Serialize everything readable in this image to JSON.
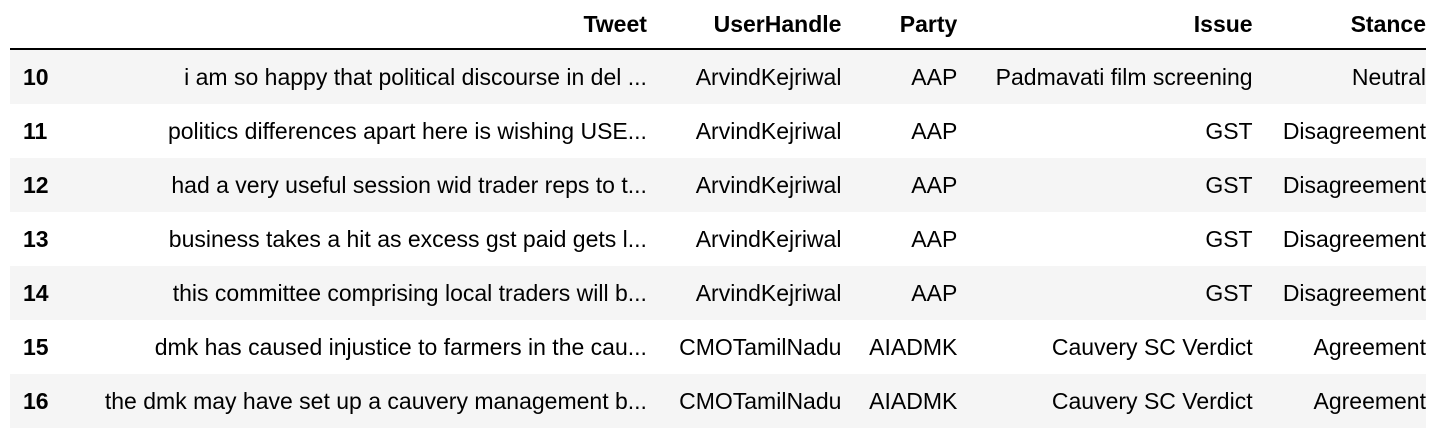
{
  "table": {
    "columns": [
      "",
      "Tweet",
      "UserHandle",
      "Party",
      "Issue",
      "Stance"
    ],
    "rows": [
      {
        "index": "10",
        "tweet": "i am so happy that political discourse in del ...",
        "user": "ArvindKejriwal",
        "party": "AAP",
        "issue": "Padmavati film screening",
        "stance": "Neutral"
      },
      {
        "index": "11",
        "tweet": "politics differences apart here is wishing USE...",
        "user": "ArvindKejriwal",
        "party": "AAP",
        "issue": "GST",
        "stance": "Disagreement"
      },
      {
        "index": "12",
        "tweet": "had a very useful session wid trader reps to t...",
        "user": "ArvindKejriwal",
        "party": "AAP",
        "issue": "GST",
        "stance": "Disagreement"
      },
      {
        "index": "13",
        "tweet": "business takes a hit as excess gst paid gets l...",
        "user": "ArvindKejriwal",
        "party": "AAP",
        "issue": "GST",
        "stance": "Disagreement"
      },
      {
        "index": "14",
        "tweet": "this committee comprising local traders will b...",
        "user": "ArvindKejriwal",
        "party": "AAP",
        "issue": "GST",
        "stance": "Disagreement"
      },
      {
        "index": "15",
        "tweet": "dmk has caused injustice to farmers in the cau...",
        "user": "CMOTamilNadu",
        "party": "AIADMK",
        "issue": "Cauvery SC Verdict",
        "stance": "Agreement"
      },
      {
        "index": "16",
        "tweet": "the dmk may have set up a cauvery management b...",
        "user": "CMOTamilNadu",
        "party": "AIADMK",
        "issue": "Cauvery SC Verdict",
        "stance": "Agreement"
      }
    ]
  }
}
